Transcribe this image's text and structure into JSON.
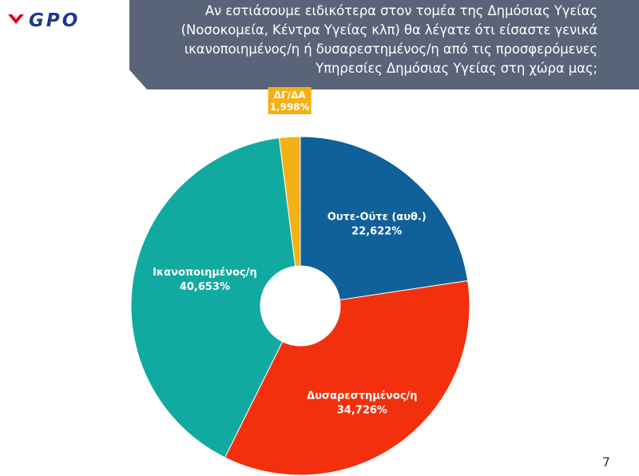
{
  "brand": {
    "logo_text": "GPO"
  },
  "question": "Αν εστιάσουμε ειδικότερα στον τομέα της Δημόσιας Υγείας (Νοσοκομεία, Κέντρα Υγείας κλπ) θα λέγατε ότι είσαστε γενικά ικανοποιημένος/η ή δυσαρεστημένος/η από τις προσφερόμενες Υπηρεσίες Δημόσιας Υγείας στη χώρα μας;",
  "page_number": "7",
  "colors": {
    "header_band": "#5a6478",
    "logo_red": "#e2001a",
    "logo_navy": "#1f3a8a"
  },
  "chart_data": {
    "type": "pie",
    "donut": true,
    "start_angle_deg": 0,
    "direction": "clockwise",
    "categories": [
      "Ουτε-Ούτε (αυθ.)",
      "Δυσαρεστημένος/η",
      "Ικανοποιημένος/η",
      "ΔΓ/ΔΑ"
    ],
    "values": [
      22.622,
      34.726,
      40.653,
      1.998
    ],
    "value_labels": [
      "22,622%",
      "34,726%",
      "40,653%",
      "1,998%"
    ],
    "colors": [
      "#10609a",
      "#f2300d",
      "#10aaa0",
      "#f4b015"
    ],
    "title": "",
    "legend": "none"
  }
}
